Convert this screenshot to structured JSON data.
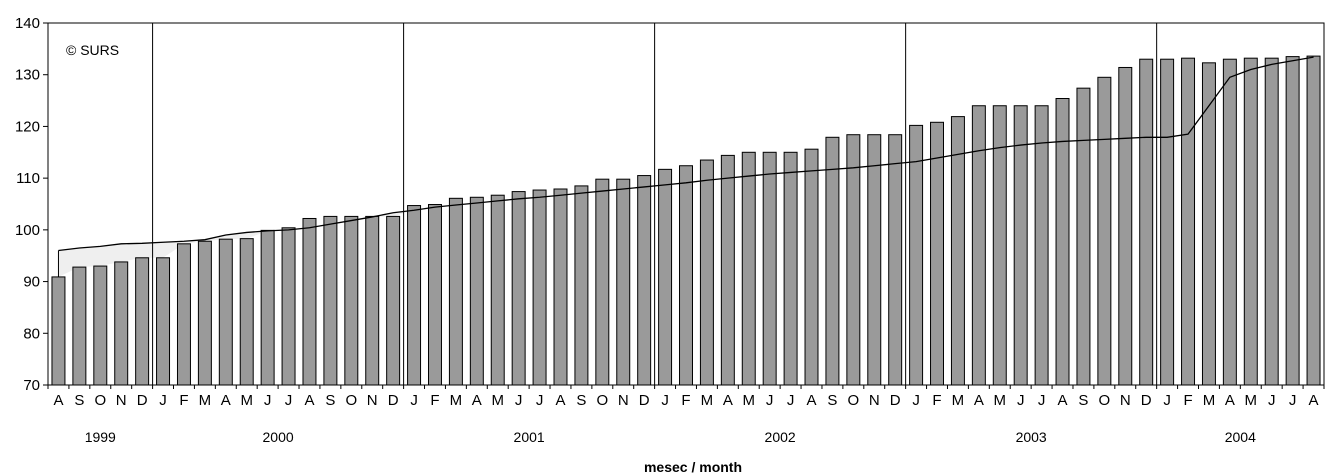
{
  "chart_data": {
    "type": "bar",
    "copyright": "© SURS",
    "xlabel": "mesec / month",
    "ylim": [
      70,
      140
    ],
    "yticks": [
      70,
      80,
      90,
      100,
      110,
      120,
      130,
      140
    ],
    "grid": false,
    "legend": "none",
    "categories": [
      "A",
      "S",
      "O",
      "N",
      "D",
      "J",
      "F",
      "M",
      "A",
      "M",
      "J",
      "J",
      "A",
      "S",
      "O",
      "N",
      "D",
      "J",
      "F",
      "M",
      "A",
      "M",
      "J",
      "J",
      "A",
      "S",
      "O",
      "N",
      "D",
      "J",
      "F",
      "M",
      "A",
      "M",
      "J",
      "J",
      "A",
      "S",
      "O",
      "N",
      "D",
      "J",
      "F",
      "M",
      "A",
      "M",
      "J",
      "J",
      "A",
      "S",
      "O",
      "N",
      "D",
      "J",
      "F",
      "M",
      "A",
      "M",
      "J",
      "J",
      "A"
    ],
    "years": [
      {
        "label": "1999",
        "start": 0,
        "end": 5
      },
      {
        "label": "2000",
        "start": 5,
        "end": 17
      },
      {
        "label": "2001",
        "start": 17,
        "end": 29
      },
      {
        "label": "2002",
        "start": 29,
        "end": 41
      },
      {
        "label": "2003",
        "start": 41,
        "end": 53
      },
      {
        "label": "2004",
        "start": 53,
        "end": 61
      }
    ],
    "series": [
      {
        "type": "bar",
        "color": "#9a9a9a",
        "values": [
          90.9,
          92.8,
          93.0,
          93.8,
          94.6,
          94.6,
          97.3,
          97.8,
          98.2,
          98.3,
          99.9,
          100.4,
          102.2,
          102.6,
          102.6,
          102.6,
          102.6,
          104.7,
          104.9,
          106.1,
          106.3,
          106.7,
          107.4,
          107.7,
          107.9,
          108.5,
          109.8,
          109.8,
          110.5,
          111.7,
          112.4,
          113.5,
          114.4,
          115.0,
          115.0,
          115.0,
          115.6,
          117.9,
          118.4,
          118.4,
          118.4,
          120.2,
          120.8,
          121.9,
          124.0,
          124.0,
          124.0,
          124.0,
          125.4,
          127.4,
          129.5,
          131.4,
          133.0,
          133.0,
          133.2,
          132.3,
          133.0,
          133.2,
          133.2,
          133.5,
          133.6
        ]
      },
      {
        "type": "line",
        "color": "#000000",
        "values": [
          96.0,
          96.5,
          96.8,
          97.3,
          97.4,
          97.6,
          97.8,
          98.1,
          99.0,
          99.5,
          99.8,
          100.0,
          100.4,
          101.1,
          101.8,
          102.5,
          103.3,
          103.8,
          104.4,
          104.8,
          105.2,
          105.6,
          106.0,
          106.3,
          106.7,
          107.1,
          107.5,
          107.9,
          108.3,
          108.7,
          109.1,
          109.6,
          110.0,
          110.4,
          110.8,
          111.1,
          111.4,
          111.7,
          112.0,
          112.4,
          112.8,
          113.2,
          113.9,
          114.6,
          115.3,
          115.9,
          116.4,
          116.8,
          117.1,
          117.3,
          117.5,
          117.7,
          117.9,
          117.9,
          118.5,
          124.0,
          129.5,
          131.0,
          132.0,
          132.7,
          133.4
        ]
      }
    ]
  }
}
